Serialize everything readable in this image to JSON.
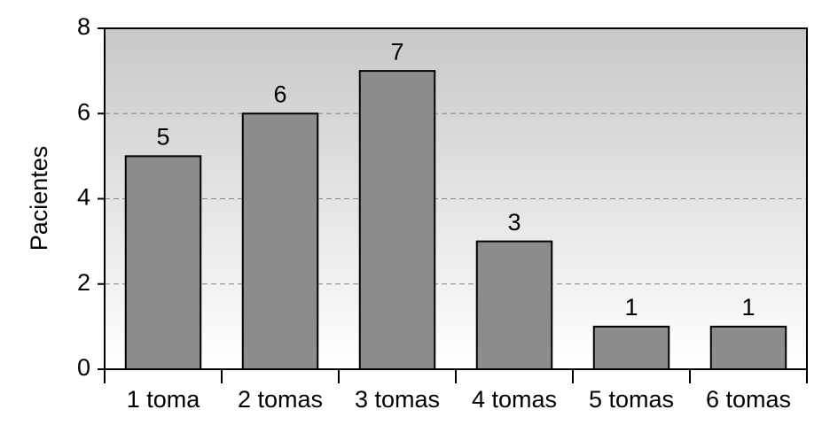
{
  "chart_data": {
    "type": "bar",
    "y_label": "Pacientes",
    "categories": [
      "1 toma",
      "2 tomas",
      "3 tomas",
      "4 tomas",
      "5 tomas",
      "6 tomas"
    ],
    "values": [
      5,
      6,
      7,
      3,
      1,
      1
    ],
    "color": "#8c8c8c",
    "ylim": [
      0,
      8
    ],
    "yticks": [
      0,
      2,
      4,
      6,
      8
    ],
    "grid": true
  }
}
